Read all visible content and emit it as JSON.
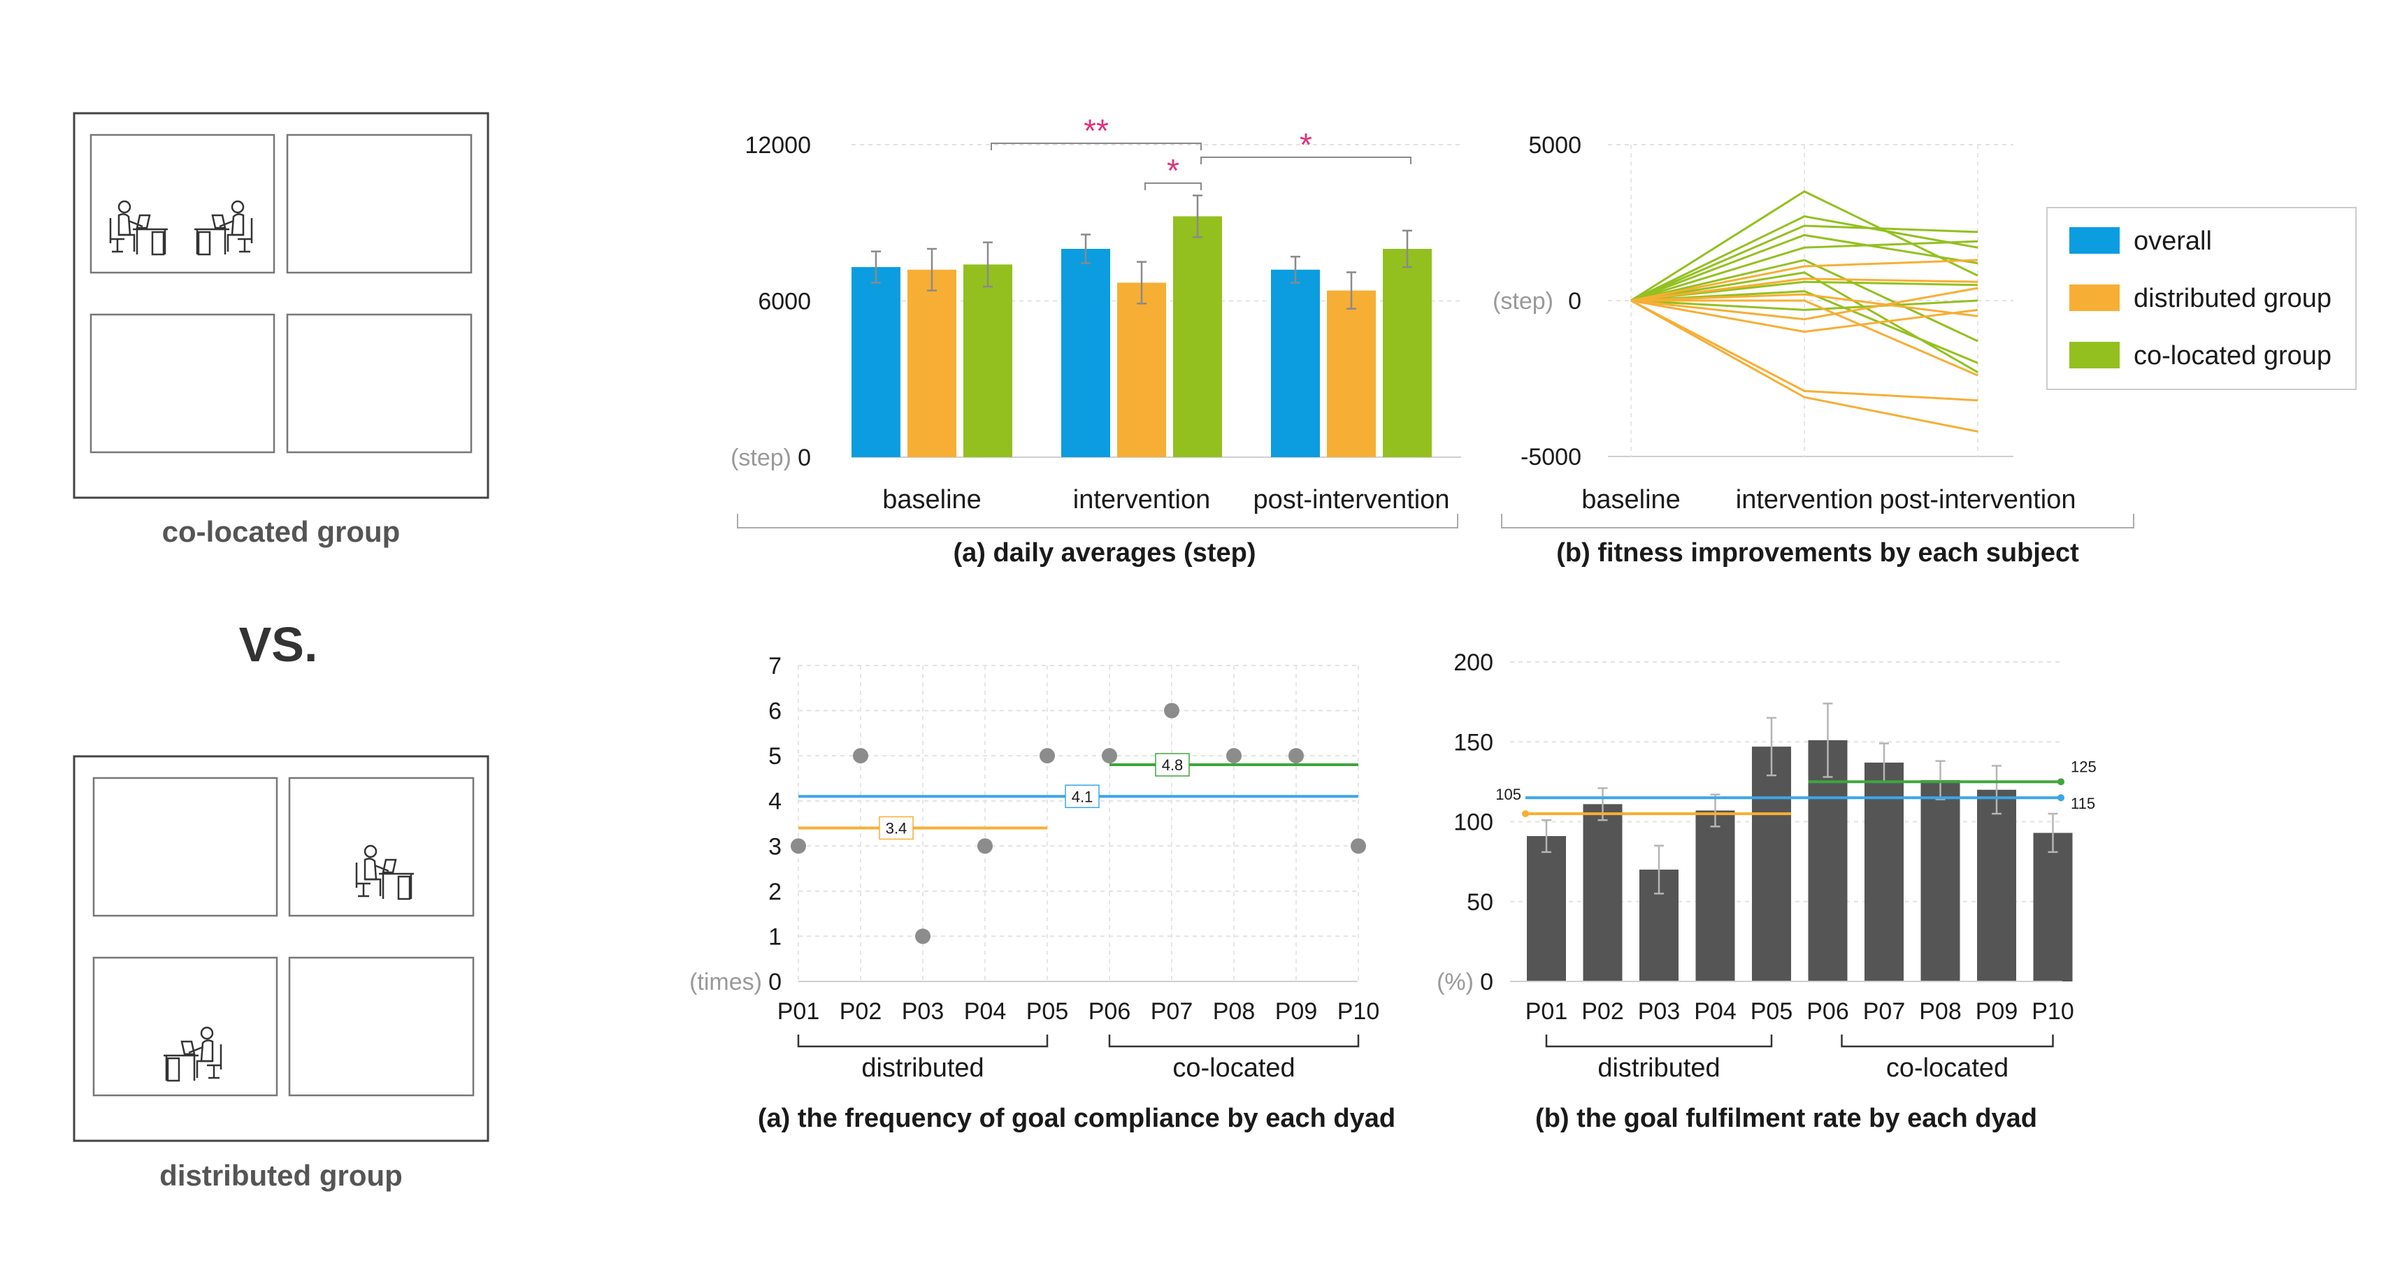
{
  "colors": {
    "overall": "#0b9de0",
    "distributed": "#f7ae34",
    "colocated": "#93c01f",
    "dark_bar": "#555555",
    "star": "#e0307a",
    "dot": "#8c8c8c",
    "blue_line": "#3aa7e8",
    "green_line": "#3fa63c",
    "orange_line": "#f7ae34"
  },
  "icons": [
    "person-at-desk-icon"
  ],
  "left_panel": {
    "top_label": "co-located group",
    "vs_label": "VS.",
    "bottom_label": "distributed group"
  },
  "chart_data": [
    {
      "type": "bar",
      "id": "daily-averages",
      "title": "(a)  daily averages (step)",
      "ylabel": "(step)",
      "ylim": [
        0,
        12000
      ],
      "yticks": [
        0,
        6000,
        12000
      ],
      "categories": [
        "baseline",
        "intervention",
        "post-intervention"
      ],
      "series": [
        {
          "name": "overall",
          "values": [
            7300,
            8000,
            7200
          ],
          "errors": [
            600,
            550,
            500
          ]
        },
        {
          "name": "distributed group",
          "values": [
            7200,
            6700,
            6400
          ],
          "errors": [
            800,
            800,
            700
          ]
        },
        {
          "name": "co-located group",
          "values": [
            7400,
            9250,
            8000
          ],
          "errors": [
            850,
            800,
            700
          ]
        }
      ],
      "significance": [
        {
          "from": "baseline",
          "to": "intervention",
          "label": "**"
        },
        {
          "from": "intervention",
          "to": "intervention",
          "label": "*"
        },
        {
          "from": "intervention",
          "to": "post-intervention",
          "label": "*"
        }
      ]
    },
    {
      "type": "line",
      "id": "fitness-improvements",
      "title": "(b)  fitness improvements by each subject",
      "ylabel": "(step)",
      "ylim": [
        -5000,
        5000
      ],
      "yticks": [
        -5000,
        0,
        5000
      ],
      "x": [
        "baseline",
        "intervention",
        "post-intervention"
      ],
      "legend": [
        "overall",
        "distributed group",
        "co-located group"
      ],
      "legend_position": "right",
      "series": [
        {
          "group": "co-located group",
          "values": [
            0,
            3500,
            800
          ]
        },
        {
          "group": "co-located group",
          "values": [
            0,
            2700,
            1700
          ]
        },
        {
          "group": "co-located group",
          "values": [
            0,
            2400,
            2200
          ]
        },
        {
          "group": "co-located group",
          "values": [
            0,
            2100,
            1200
          ]
        },
        {
          "group": "co-located group",
          "values": [
            0,
            1700,
            1900
          ]
        },
        {
          "group": "co-located group",
          "values": [
            0,
            1300,
            -1300
          ]
        },
        {
          "group": "co-located group",
          "values": [
            0,
            900,
            -2300
          ]
        },
        {
          "group": "co-located group",
          "values": [
            0,
            600,
            500
          ]
        },
        {
          "group": "co-located group",
          "values": [
            0,
            300,
            -2000
          ]
        },
        {
          "group": "co-located group",
          "values": [
            0,
            -300,
            0
          ]
        },
        {
          "group": "distributed group",
          "values": [
            0,
            1100,
            1300
          ]
        },
        {
          "group": "distributed group",
          "values": [
            0,
            700,
            600
          ]
        },
        {
          "group": "distributed group",
          "values": [
            0,
            200,
            -500
          ]
        },
        {
          "group": "distributed group",
          "values": [
            0,
            -600,
            400
          ]
        },
        {
          "group": "distributed group",
          "values": [
            0,
            -1000,
            -300
          ]
        },
        {
          "group": "distributed group",
          "values": [
            0,
            -2900,
            -3200
          ]
        },
        {
          "group": "distributed group",
          "values": [
            0,
            -3100,
            -4200
          ]
        },
        {
          "group": "distributed group",
          "values": [
            0,
            0,
            -2400
          ]
        }
      ]
    },
    {
      "type": "scatter",
      "id": "goal-compliance",
      "title": "(a) the frequency of goal compliance by each dyad",
      "ylabel": "(times)",
      "ylim": [
        0,
        7
      ],
      "yticks": [
        0,
        1,
        2,
        3,
        4,
        5,
        6,
        7
      ],
      "categories": [
        "P01",
        "P02",
        "P03",
        "P04",
        "P05",
        "P06",
        "P07",
        "P08",
        "P09",
        "P10"
      ],
      "values": [
        3,
        5,
        1,
        3,
        5,
        5,
        6,
        5,
        5,
        3
      ],
      "group_labels": [
        "distributed",
        "co-located"
      ],
      "mean_lines": [
        {
          "label": "3.4",
          "value": 3.4,
          "range": [
            "P01",
            "P05"
          ],
          "color": "orange"
        },
        {
          "label": "4.1",
          "value": 4.1,
          "range": [
            "P01",
            "P10"
          ],
          "color": "blue"
        },
        {
          "label": "4.8",
          "value": 4.8,
          "range": [
            "P06",
            "P10"
          ],
          "color": "green"
        }
      ]
    },
    {
      "type": "bar",
      "id": "goal-fulfilment",
      "title": "(b) the goal fulfilment rate by each dyad",
      "ylabel": "(%)",
      "ylim": [
        0,
        200
      ],
      "yticks": [
        0,
        50,
        100,
        150,
        200
      ],
      "categories": [
        "P01",
        "P02",
        "P03",
        "P04",
        "P05",
        "P06",
        "P07",
        "P08",
        "P09",
        "P10"
      ],
      "values": [
        91,
        111,
        70,
        107,
        147,
        151,
        137,
        126,
        120,
        93
      ],
      "errors": [
        10,
        10,
        15,
        10,
        18,
        23,
        12,
        12,
        15,
        12
      ],
      "group_labels": [
        "distributed",
        "co-located"
      ],
      "mean_lines": [
        {
          "label": "105",
          "value": 105,
          "range": [
            "P01",
            "P05"
          ],
          "color": "orange"
        },
        {
          "label": "115",
          "value": 115,
          "range": [
            "P01",
            "P10"
          ],
          "color": "blue"
        },
        {
          "label": "125",
          "value": 125,
          "range": [
            "P06",
            "P10"
          ],
          "color": "green"
        }
      ]
    }
  ]
}
